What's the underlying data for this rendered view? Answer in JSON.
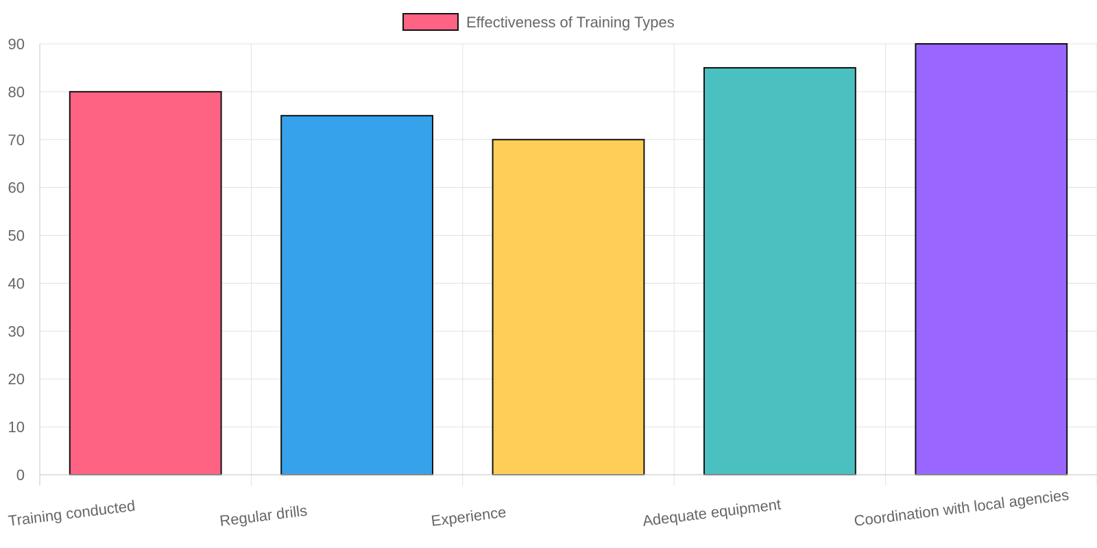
{
  "chart_data": {
    "type": "bar",
    "title": "",
    "xlabel": "",
    "ylabel": "",
    "categories": [
      "Training conducted",
      "Regular drills",
      "Experience",
      "Adequate equipment",
      "Coordination with local agencies"
    ],
    "series": [
      {
        "name": "Effectiveness of Training Types",
        "values": [
          80,
          75,
          70,
          85,
          90
        ],
        "colors": [
          "#ff6384",
          "#36a2eb",
          "#ffce56",
          "#4bc0c0",
          "#9966ff"
        ],
        "border_color": "#111111"
      }
    ],
    "legend": {
      "position": "top",
      "swatch_color": "#ff6384",
      "label": "Effectiveness of Training Types"
    },
    "ylim": [
      0,
      90
    ],
    "yticks": [
      0,
      10,
      20,
      30,
      40,
      50,
      60,
      70,
      80,
      90
    ],
    "grid": true
  }
}
